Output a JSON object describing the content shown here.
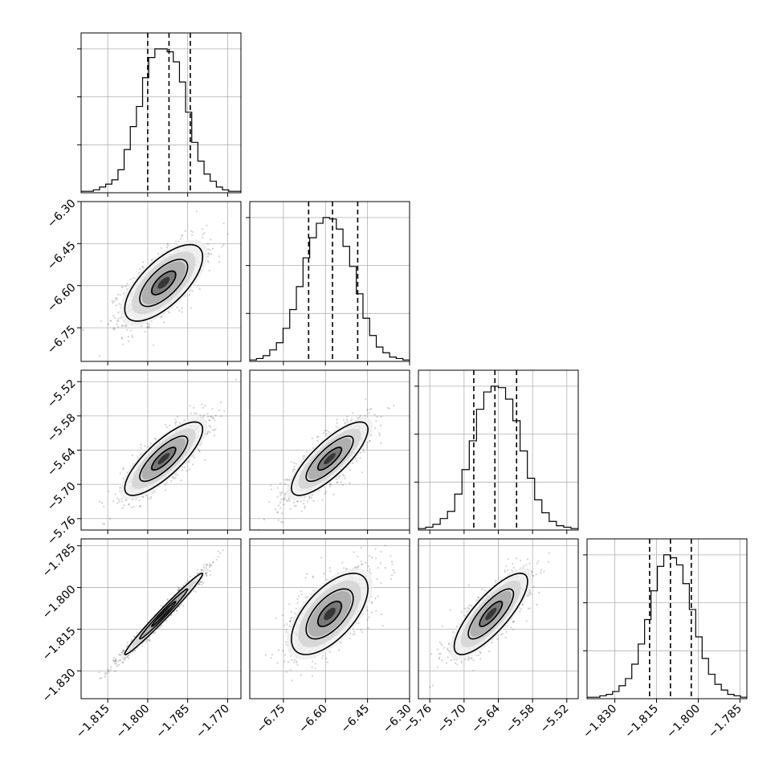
{
  "chart_data": {
    "type": "corner",
    "grid": true,
    "variables": [
      {
        "range": [
          -1.825,
          -1.765
        ],
        "ticks": [
          "−1.815",
          "−1.800",
          "−1.785",
          "−1.770"
        ],
        "tick_values": [
          -1.815,
          -1.8,
          -1.785,
          -1.77
        ],
        "quantiles": [
          -1.8,
          -1.792,
          -1.784
        ],
        "hist_counts": [
          1,
          1,
          2,
          4,
          6,
          9,
          16,
          30,
          46,
          60,
          80,
          94,
          100,
          100,
          98,
          91,
          77,
          56,
          35,
          22,
          13,
          8,
          4,
          2,
          1,
          1
        ]
      },
      {
        "range": [
          -6.87,
          -6.3
        ],
        "ticks": [
          "−6.30",
          "−6.45",
          "−6.60",
          "−6.75"
        ],
        "tick_values": [
          -6.3,
          -6.45,
          -6.6,
          -6.75
        ],
        "x_ticks": [
          "−6.75",
          "−6.60",
          "−6.45",
          "−6.30"
        ],
        "x_tick_values": [
          -6.75,
          -6.6,
          -6.45,
          -6.3
        ],
        "quantiles": [
          -6.66,
          -6.575,
          -6.485
        ],
        "hist_counts": [
          1,
          2,
          4,
          8,
          13,
          23,
          36,
          52,
          72,
          86,
          96,
          100,
          99,
          92,
          80,
          66,
          47,
          30,
          18,
          10,
          6,
          3,
          2,
          1
        ]
      },
      {
        "range": [
          -5.78,
          -5.5
        ],
        "ticks": [
          "−5.52",
          "−5.58",
          "−5.64",
          "−5.70",
          "−5.76"
        ],
        "tick_values": [
          -5.52,
          -5.58,
          -5.64,
          -5.7,
          -5.76
        ],
        "x_ticks": [
          "−5.76",
          "−5.70",
          "−5.64",
          "−5.58",
          "−5.52"
        ],
        "x_tick_values": [
          -5.76,
          -5.7,
          -5.64,
          -5.58,
          -5.52
        ],
        "quantiles": [
          -5.683,
          -5.646,
          -5.608
        ],
        "hist_counts": [
          1,
          2,
          4,
          8,
          13,
          25,
          42,
          62,
          84,
          96,
          100,
          99,
          91,
          76,
          55,
          36,
          21,
          12,
          6,
          3,
          2,
          1
        ]
      },
      {
        "range": [
          -1.84,
          -1.7825
        ],
        "ticks": [
          "−1.785",
          "−1.800",
          "−1.815",
          "−1.830"
        ],
        "tick_values": [
          -1.785,
          -1.8,
          -1.815,
          -1.83
        ],
        "x_ticks": [
          "−1.830",
          "−1.815",
          "−1.800",
          "−1.785"
        ],
        "x_tick_values": [
          -1.83,
          -1.815,
          -1.8,
          -1.785
        ],
        "quantiles": [
          -1.8175,
          -1.81,
          -1.8025
        ],
        "hist_counts": [
          1,
          1,
          2,
          3,
          5,
          9,
          14,
          24,
          38,
          55,
          75,
          92,
          100,
          98,
          93,
          80,
          62,
          43,
          28,
          17,
          10,
          6,
          3,
          2,
          1
        ]
      }
    ],
    "pairs": [
      {
        "x": 0,
        "y": 1,
        "center": [
          -1.794,
          -6.59
        ],
        "sigma": [
          0.0075,
          0.07
        ],
        "corr": 0.68
      },
      {
        "x": 0,
        "y": 2,
        "center": [
          -1.794,
          -5.655
        ],
        "sigma": [
          0.0075,
          0.033
        ],
        "corr": 0.8
      },
      {
        "x": 1,
        "y": 2,
        "center": [
          -6.585,
          -5.655
        ],
        "sigma": [
          0.07,
          0.033
        ],
        "corr": 0.8
      },
      {
        "x": 0,
        "y": 3,
        "center": [
          -1.794,
          -1.8095
        ],
        "sigma": [
          0.0075,
          0.0075
        ],
        "corr": 0.985
      },
      {
        "x": 1,
        "y": 3,
        "center": [
          -6.585,
          -1.8095
        ],
        "sigma": [
          0.07,
          0.0075
        ],
        "corr": 0.62
      },
      {
        "x": 2,
        "y": 3,
        "center": [
          -5.653,
          -1.8095
        ],
        "sigma": [
          0.033,
          0.0075
        ],
        "corr": 0.8
      }
    ]
  }
}
